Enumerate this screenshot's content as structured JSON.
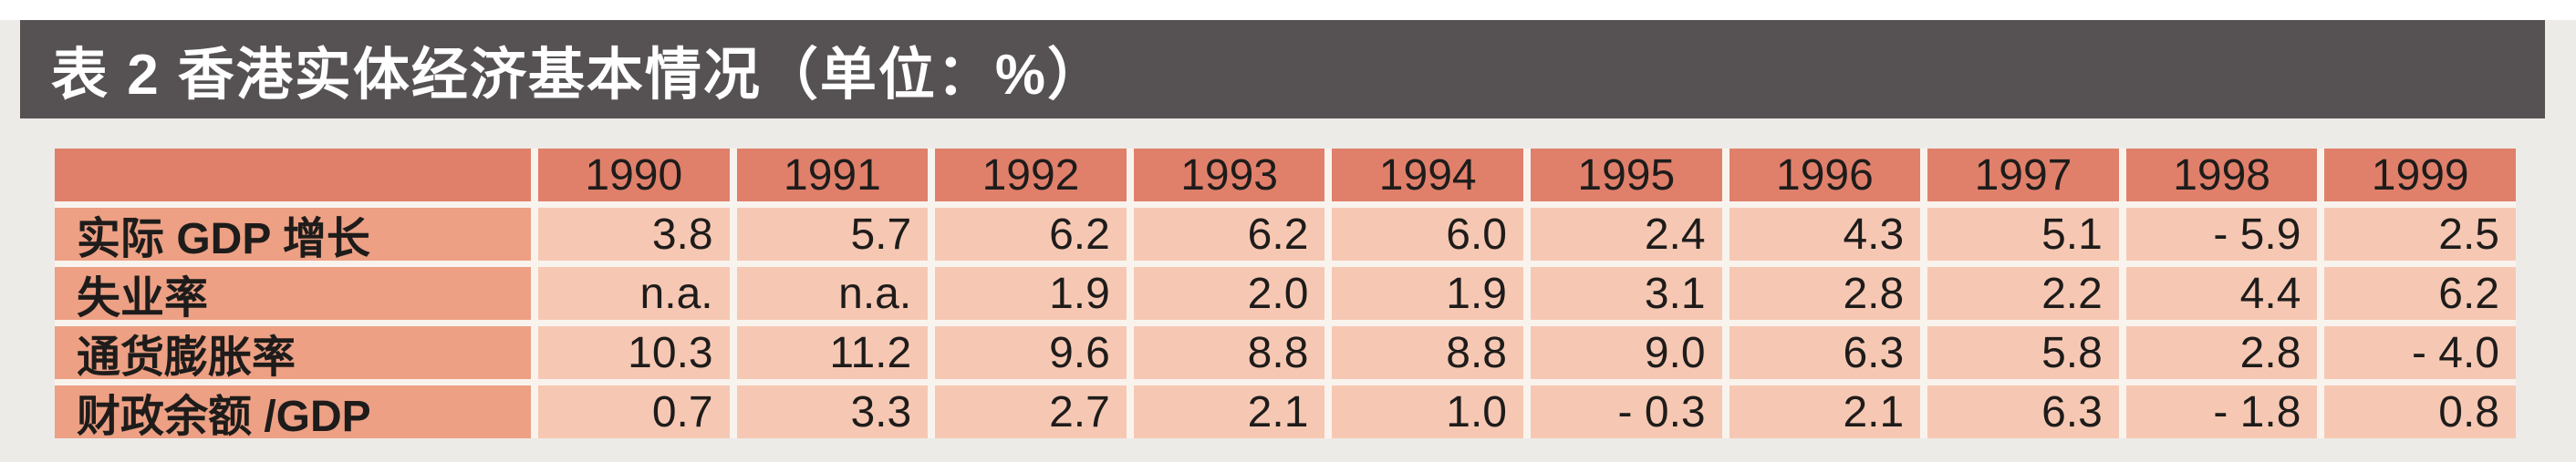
{
  "page": {
    "background": "#edebe7",
    "top_strip_color": "#ffffff"
  },
  "caption_bar": {
    "text": "表 2 香港实体经济基本情况（单位：%）",
    "background": "#565254",
    "text_color": "#ffffff"
  },
  "table": {
    "colors": {
      "header_bg": "#e0806b",
      "label_bg": "#eda084",
      "value_bg": "#f6c8b3",
      "separator": "#f9f3ee",
      "text": "#1e1c1b"
    },
    "columns": [
      "",
      "1990",
      "1991",
      "1992",
      "1993",
      "1994",
      "1995",
      "1996",
      "1997",
      "1998",
      "1999"
    ],
    "rows": [
      {
        "label": "实际 GDP 增长",
        "values": [
          "3.8",
          "5.7",
          "6.2",
          "6.2",
          "6.0",
          "2.4",
          "4.3",
          "5.1",
          "- 5.9",
          "2.5"
        ]
      },
      {
        "label": "失业率",
        "values": [
          "n.a.",
          "n.a.",
          "1.9",
          "2.0",
          "1.9",
          "3.1",
          "2.8",
          "2.2",
          "4.4",
          "6.2"
        ]
      },
      {
        "label": "通货膨胀率",
        "values": [
          "10.3",
          "11.2",
          "9.6",
          "8.8",
          "8.8",
          "9.0",
          "6.3",
          "5.8",
          "2.8",
          "- 4.0"
        ]
      },
      {
        "label": "财政余额 /GDP",
        "values": [
          "0.7",
          "3.3",
          "2.7",
          "2.1",
          "1.0",
          "- 0.3",
          "2.1",
          "6.3",
          "- 1.8",
          "0.8"
        ]
      }
    ]
  },
  "chart_data": {
    "type": "table",
    "title": "表 2 香港实体经济基本情况（单位：%）",
    "unit": "%",
    "categories": [
      "1990",
      "1991",
      "1992",
      "1993",
      "1994",
      "1995",
      "1996",
      "1997",
      "1998",
      "1999"
    ],
    "series": [
      {
        "name": "实际 GDP 增长",
        "values": [
          3.8,
          5.7,
          6.2,
          6.2,
          6.0,
          2.4,
          4.3,
          5.1,
          -5.9,
          2.5
        ]
      },
      {
        "name": "失业率",
        "values": [
          null,
          null,
          1.9,
          2.0,
          1.9,
          3.1,
          2.8,
          2.2,
          4.4,
          6.2
        ]
      },
      {
        "name": "通货膨胀率",
        "values": [
          10.3,
          11.2,
          9.6,
          8.8,
          8.8,
          9.0,
          6.3,
          5.8,
          2.8,
          -4.0
        ]
      },
      {
        "name": "财政余额/GDP",
        "values": [
          0.7,
          3.3,
          2.7,
          2.1,
          1.0,
          -0.3,
          2.1,
          6.3,
          -1.8,
          0.8
        ]
      }
    ]
  }
}
